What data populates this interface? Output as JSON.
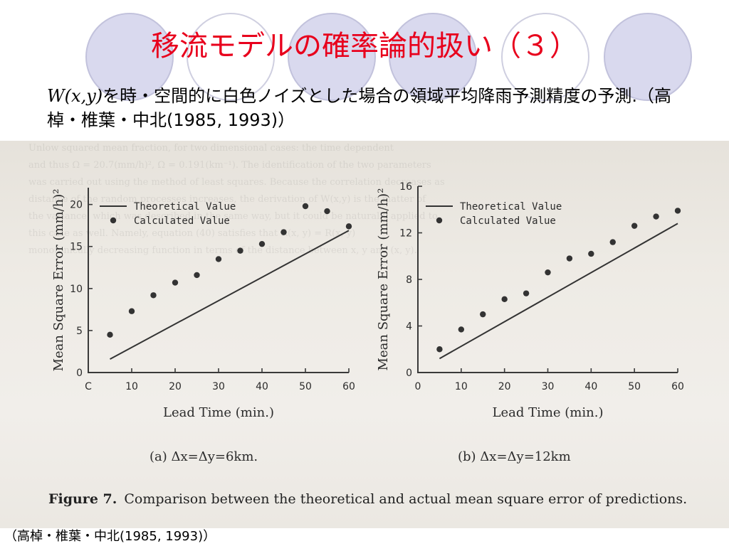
{
  "slide": {
    "title": "移流モデルの確率論的扱い（３）",
    "caption_w": "W(x,y)",
    "caption_rest": "を時・空間的に白色ノイズとした場合の領域平均降雨予測精度の予測.（高棹・椎葉・中北(1985, 1993)）",
    "source": "（高棹・椎葉・中北(1985, 1993)）"
  },
  "figure": {
    "caption_bold": "Figure 7.",
    "caption_text": "Comparison between the theoretical and actual mean square error of predictions."
  },
  "chart_data": [
    {
      "type": "scatter",
      "subtitle": "(a) Δx=Δy=6km.",
      "xlabel": "Lead Time (min.)",
      "ylabel": "Mean Square Error (mm/h)²",
      "xlim": [
        0,
        60
      ],
      "ylim": [
        0,
        22
      ],
      "x_ticks": [
        "C",
        "10",
        "20",
        "30",
        "40",
        "50",
        "60"
      ],
      "y_ticks": [
        "0",
        "5",
        "10",
        "15",
        "20"
      ],
      "legend": [
        "Theoretical Value",
        "Calculated Value"
      ],
      "legend_position": "top",
      "series": [
        {
          "name": "Calculated Value",
          "x": [
            5,
            10,
            15,
            20,
            25,
            30,
            35,
            40,
            45,
            50,
            55,
            60
          ],
          "y": [
            4.5,
            7.3,
            9.2,
            10.7,
            11.6,
            13.5,
            14.5,
            15.3,
            16.7,
            19.8,
            19.2,
            17.4
          ]
        },
        {
          "name": "Theoretical Value",
          "x": [
            5,
            60
          ],
          "y": [
            1.6,
            16.9
          ]
        }
      ]
    },
    {
      "type": "scatter",
      "subtitle": "(b) Δx=Δy=12km",
      "xlabel": "Lead Time (min.)",
      "ylabel": "Mean Square Error (mm/h)²",
      "xlim": [
        0,
        60
      ],
      "ylim": [
        0,
        16
      ],
      "x_ticks": [
        "0",
        "10",
        "20",
        "30",
        "40",
        "50",
        "60"
      ],
      "y_ticks": [
        "0",
        "4",
        "8",
        "12",
        "16"
      ],
      "legend": [
        "Theoretical Value",
        "Calculated Value"
      ],
      "legend_position": "top",
      "series": [
        {
          "name": "Calculated Value",
          "x": [
            5,
            10,
            15,
            20,
            25,
            30,
            35,
            40,
            45,
            50,
            55,
            60
          ],
          "y": [
            2.0,
            3.7,
            5.0,
            6.3,
            6.8,
            8.6,
            9.8,
            10.2,
            11.2,
            12.6,
            13.4,
            13.9
          ]
        },
        {
          "name": "Theoretical Value",
          "x": [
            5,
            60
          ],
          "y": [
            1.2,
            12.8
          ]
        }
      ]
    }
  ]
}
